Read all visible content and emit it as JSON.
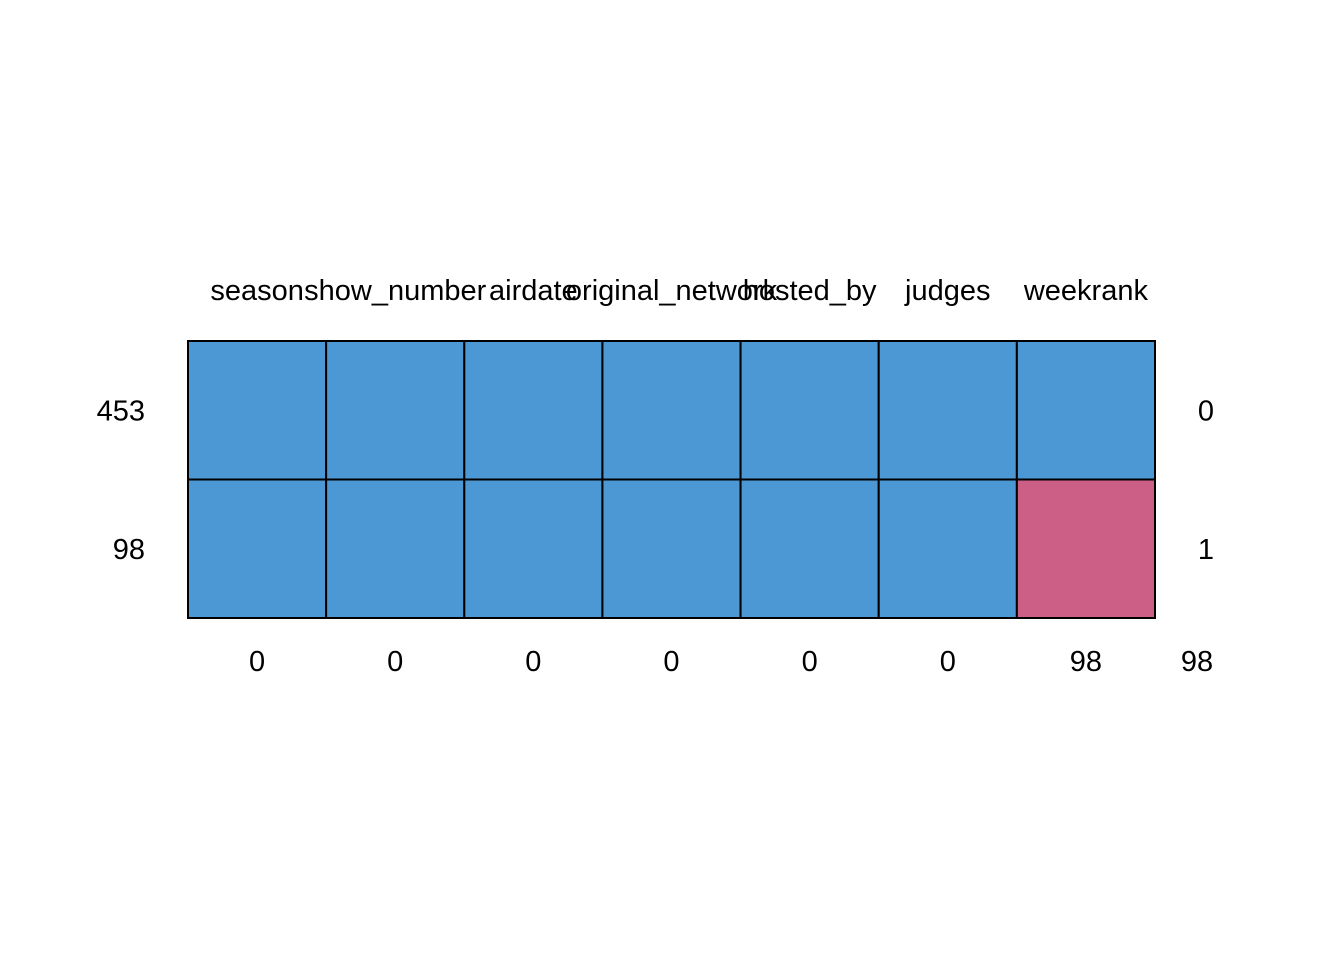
{
  "chart_data": {
    "type": "heatmap",
    "title": "",
    "columns": [
      "season",
      "show_number",
      "airdate",
      "original_network",
      "hosted_by",
      "judges",
      "weekrank"
    ],
    "rows": [
      {
        "count": 453,
        "missing_vars": 0,
        "cells": [
          1,
          1,
          1,
          1,
          1,
          1,
          1
        ]
      },
      {
        "count": 98,
        "missing_vars": 1,
        "cells": [
          1,
          1,
          1,
          1,
          1,
          1,
          0
        ]
      }
    ],
    "column_missing_totals": [
      0,
      0,
      0,
      0,
      0,
      0,
      98
    ],
    "total_missing": 98,
    "legend": "none",
    "grid": true
  },
  "colors": {
    "observed": "#4c98d4",
    "missing": "#cc5f86",
    "border": "#000000",
    "background": "#ffffff"
  }
}
